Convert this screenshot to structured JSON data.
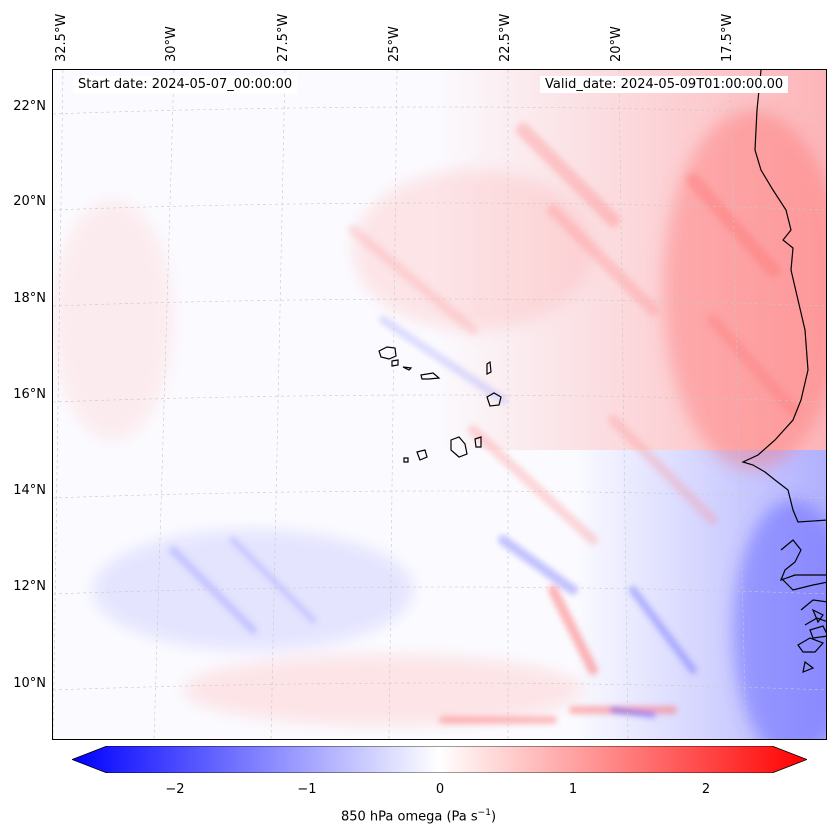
{
  "map": {
    "start_date": "Start date: 2024-05-07_00:00:00",
    "valid_date": "Valid_date: 2024-05-09T01:00:00.00",
    "lon_labels": [
      "32.5°W",
      "30°W",
      "27.5°W",
      "25°W",
      "22.5°W",
      "20°W",
      "17.5°W"
    ],
    "lat_labels": [
      "22°N",
      "20°N",
      "18°N",
      "16°N",
      "14°N",
      "12°N",
      "10°N"
    ],
    "field": "850 hPa omega",
    "colormap": "bwr",
    "colors": {
      "negative": "#0000ff",
      "zero": "#ffffff",
      "positive": "#ff0000",
      "coast": "#000000",
      "grid": "#c8c8c8"
    }
  },
  "colorbar": {
    "label_prefix": "850 hPa omega (Pa s",
    "label_exp": "−1",
    "label_suffix": ")",
    "ticks": [
      "−2",
      "−1",
      "0",
      "1",
      "2"
    ],
    "range": [
      -2.5,
      2.5
    ]
  }
}
